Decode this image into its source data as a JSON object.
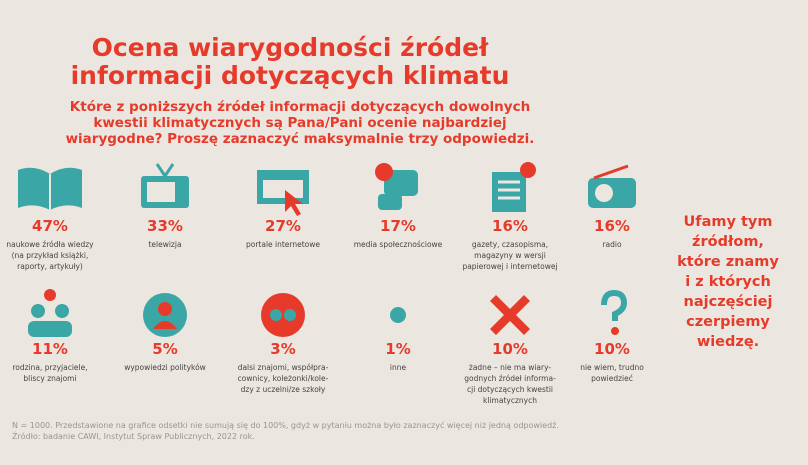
{
  "header": {
    "title": [
      "Ocena wiarygodności źródeł",
      "informacji dotyczących klimatu"
    ],
    "question": [
      "Które z poniższych źródeł informacji dotyczących dowolnych",
      "kwestii klimatycznych są Pana/Pani ocenie najbardziej",
      "wiarygodne? Proszę zaznaczyć maksymalnie trzy odpowiedzi."
    ]
  },
  "items": [
    {
      "value": "47%",
      "label": [
        "naukowe źródła wiedzy",
        "(na przykład książki,",
        "raporty, artykuły)"
      ]
    },
    {
      "value": "33%",
      "label": [
        "telewizja"
      ]
    },
    {
      "value": "27%",
      "label": [
        "portale internetowe"
      ]
    },
    {
      "value": "17%",
      "label": [
        "media społecznościowe"
      ]
    },
    {
      "value": "16%",
      "label": [
        "gazety, czasopisma,",
        "magazyny w wersji",
        "papierowej i internetowej"
      ]
    },
    {
      "value": "16%",
      "label": [
        "radio"
      ]
    },
    {
      "value": "11%",
      "label": [
        "rodzina, przyjaciele,",
        "bliscy znajomi"
      ]
    },
    {
      "value": "5%",
      "label": [
        "wypowiedzi polityków"
      ]
    },
    {
      "value": "3%",
      "label": [
        "dalsi znajomi, współpra-",
        "cownicy, koleżonki/kole-",
        "dzy z uczelni/ze szkoły"
      ]
    },
    {
      "value": "1%",
      "label": [
        "inne"
      ]
    },
    {
      "value": "10%",
      "label": [
        "żadne – nie ma wiary-",
        "godnych źródeł informa-",
        "cji dotyczących kwestii",
        "klimatycznych"
      ]
    },
    {
      "value": "10%",
      "label": [
        "nie wiem, trudno",
        "powiedzieć"
      ]
    }
  ],
  "side": [
    "Ufamy tym",
    "źródłom,",
    "które znamy",
    "i z których",
    "najczęściej",
    "czerpiemy",
    "wiedzę."
  ],
  "footnote": [
    "N = 1000. Przedstawione na grafice odsetki nie sumują się do 100%, gdyż w pytaniu można było zaznaczyć więcej niż jedną odpowiedź.",
    "Źródło: badanie CAWI, Instytut Spraw Publicznych, 2022 rok."
  ]
}
